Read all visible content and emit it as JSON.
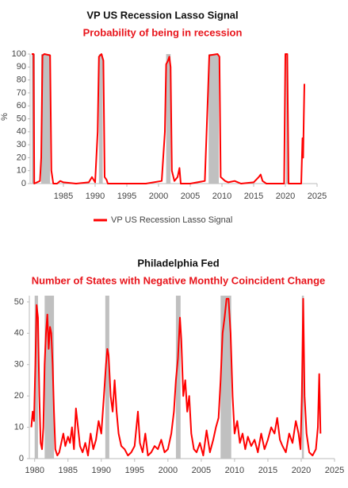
{
  "chart_data": [
    {
      "type": "line",
      "title": "VP US Recession Lasso Signal",
      "subtitle": "Probability of being in recession",
      "y_label": "%",
      "xlim": [
        1979.75,
        2025
      ],
      "xticks": [
        1985,
        1990,
        1995,
        2000,
        2005,
        2010,
        2015,
        2020,
        2025
      ],
      "ylim": [
        0,
        100
      ],
      "yticks": [
        0,
        10,
        20,
        30,
        40,
        50,
        60,
        70,
        80,
        90,
        100
      ],
      "legend": "bottom",
      "recessions": [
        [
          1980.0,
          1980.5
        ],
        [
          1981.5,
          1982.9
        ],
        [
          1990.6,
          1991.2
        ],
        [
          2001.2,
          2001.9
        ],
        [
          2007.9,
          2009.5
        ],
        [
          2020.1,
          2020.4
        ]
      ],
      "x": [
        1980.0,
        1980.3,
        1980.4,
        1981.3,
        1981.5,
        1981.7,
        1982.0,
        1982.9,
        1983.1,
        1983.4,
        1984.0,
        1984.5,
        1985,
        1987,
        1989,
        1989.5,
        1990.0,
        1990.4,
        1990.6,
        1991.0,
        1991.3,
        1991.5,
        1991.8,
        1992,
        1995,
        1998,
        2000.5,
        2001.0,
        2001.2,
        2001.5,
        2001.7,
        2001.9,
        2002.1,
        2002.5,
        2003.0,
        2003.3,
        2003.5,
        2005,
        2007.3,
        2007.8,
        2008.0,
        2009.3,
        2009.6,
        2009.8,
        2010.5,
        2011,
        2012,
        2013,
        2015,
        2015.8,
        2016.1,
        2016.4,
        2017,
        2019.8,
        2020.0,
        2020.3,
        2020.5,
        2022.0,
        2022.5,
        2022.7,
        2022.8,
        2022.9,
        2023.0
      ],
      "series": [
        {
          "name": "VP US Recession Lasso Signal",
          "color": "#ff0000",
          "values": [
            100,
            100,
            0,
            2,
            20,
            99,
            100,
            99,
            10,
            0,
            0,
            2,
            1,
            0,
            1,
            5,
            1,
            40,
            98,
            100,
            95,
            5,
            3,
            0,
            0,
            0,
            2,
            40,
            92,
            95,
            98,
            90,
            10,
            2,
            5,
            12,
            0,
            0,
            2,
            70,
            99,
            100,
            98,
            5,
            2,
            1,
            2,
            0,
            1,
            5,
            7,
            2,
            0,
            0,
            100,
            100,
            0,
            0,
            0,
            35,
            20,
            50,
            77
          ]
        }
      ]
    },
    {
      "type": "line",
      "title": "Philadelphia Fed",
      "subtitle": "Number of States with Negative Monthly Coincident Change",
      "xlim": [
        1979.2,
        2025
      ],
      "xticks": [
        1980,
        1985,
        1990,
        1995,
        2000,
        2005,
        2010,
        2015,
        2020,
        2025
      ],
      "ylim": [
        0,
        52
      ],
      "yticks": [
        0,
        10,
        20,
        30,
        40,
        50
      ],
      "recessions": [
        [
          1980.0,
          1980.5
        ],
        [
          1981.5,
          1982.9
        ],
        [
          1990.6,
          1991.2
        ],
        [
          2001.2,
          2001.9
        ],
        [
          2007.9,
          2009.5
        ],
        [
          2020.1,
          2020.4
        ]
      ],
      "x": [
        1979.5,
        1979.7,
        1979.9,
        1980.1,
        1980.3,
        1980.5,
        1980.7,
        1980.9,
        1981.1,
        1981.3,
        1981.5,
        1981.7,
        1981.9,
        1982.1,
        1982.3,
        1982.5,
        1982.7,
        1982.9,
        1983.1,
        1983.4,
        1983.7,
        1984.0,
        1984.3,
        1984.6,
        1985.0,
        1985.3,
        1985.6,
        1985.9,
        1986.2,
        1986.5,
        1986.8,
        1987.2,
        1987.6,
        1988.0,
        1988.4,
        1988.8,
        1989.2,
        1989.6,
        1990.0,
        1990.4,
        1990.7,
        1990.9,
        1991.1,
        1991.4,
        1991.7,
        1992.0,
        1992.3,
        1992.6,
        1993.0,
        1993.5,
        1994.0,
        1994.5,
        1995.0,
        1995.5,
        1995.8,
        1996.2,
        1996.6,
        1997.0,
        1997.5,
        1998.0,
        1998.5,
        1999.0,
        1999.5,
        2000.0,
        2000.5,
        2000.9,
        2001.2,
        2001.5,
        2001.8,
        2002.0,
        2002.3,
        2002.6,
        2002.9,
        2003.2,
        2003.5,
        2003.9,
        2004.3,
        2004.8,
        2005.3,
        2005.8,
        2006.3,
        2006.8,
        2007.2,
        2007.6,
        2007.9,
        2008.2,
        2008.5,
        2008.8,
        2009.1,
        2009.4,
        2009.7,
        2010.0,
        2010.4,
        2010.8,
        2011.2,
        2011.6,
        2012.0,
        2012.5,
        2013.0,
        2013.5,
        2014.0,
        2014.5,
        2015.0,
        2015.5,
        2016.0,
        2016.4,
        2016.8,
        2017.2,
        2017.7,
        2018.2,
        2018.7,
        2019.2,
        2019.6,
        2019.9,
        2020.1,
        2020.3,
        2020.5,
        2020.8,
        2021.2,
        2021.7,
        2022.2,
        2022.5,
        2022.7,
        2022.9
      ],
      "color": "#ff0000",
      "values": [
        10,
        15,
        12,
        30,
        49,
        45,
        20,
        5,
        3,
        10,
        30,
        40,
        46,
        35,
        42,
        40,
        30,
        15,
        3,
        1,
        2,
        5,
        8,
        4,
        7,
        5,
        10,
        3,
        16,
        10,
        4,
        2,
        5,
        1,
        8,
        3,
        6,
        12,
        8,
        20,
        30,
        35,
        33,
        20,
        15,
        25,
        15,
        8,
        4,
        3,
        1,
        2,
        4,
        15,
        5,
        2,
        8,
        1,
        2,
        4,
        3,
        6,
        2,
        3,
        8,
        15,
        25,
        32,
        45,
        38,
        20,
        25,
        15,
        20,
        8,
        3,
        2,
        5,
        1,
        9,
        2,
        6,
        10,
        13,
        25,
        40,
        45,
        51,
        51,
        40,
        20,
        8,
        12,
        5,
        8,
        3,
        7,
        4,
        6,
        2,
        8,
        3,
        6,
        10,
        8,
        13,
        6,
        4,
        2,
        8,
        5,
        12,
        8,
        3,
        20,
        51,
        20,
        8,
        2,
        1,
        3,
        10,
        27,
        8
      ]
    }
  ]
}
